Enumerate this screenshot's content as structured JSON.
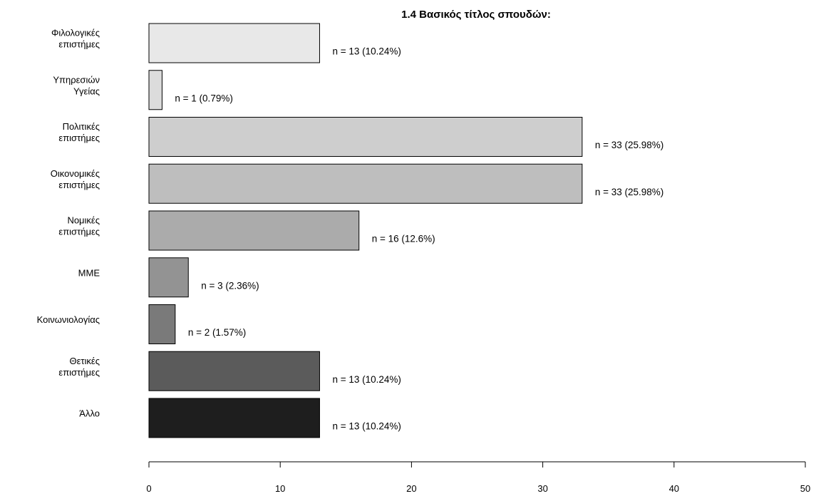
{
  "chart_data": {
    "type": "bar",
    "orientation": "horizontal",
    "title": "1.4 Βασικός τίτλος σπουδών:",
    "categories": [
      [
        "Φιλολογικές",
        "επιστήμες"
      ],
      [
        "Υπηρεσιών",
        "Υγείας"
      ],
      [
        "Πολιτικές",
        "επιστήμες"
      ],
      [
        "Οικονομικές",
        "επιστήμες"
      ],
      [
        "Νομικές",
        "επιστήμες"
      ],
      [
        "ΜΜΕ"
      ],
      [
        "Κοινωνιολογίας"
      ],
      [
        "Θετικές",
        "επιστήμες"
      ],
      [
        "Άλλο"
      ]
    ],
    "values": [
      13,
      1,
      33,
      33,
      16,
      3,
      2,
      13,
      13
    ],
    "data_labels": [
      "n = 13 (10.24%)",
      "n = 1 (0.79%)",
      "n = 33 (25.98%)",
      "n = 33 (25.98%)",
      "n = 16 (12.6%)",
      "n = 3 (2.36%)",
      "n = 2 (1.57%)",
      "n = 13 (10.24%)",
      "n = 13 (10.24%)"
    ],
    "bar_colors": [
      "#e8e8e8",
      "#dcdcdc",
      "#cecece",
      "#bebebe",
      "#ababab",
      "#939393",
      "#7a7a7a",
      "#5b5b5b",
      "#1e1e1e"
    ],
    "xlim": [
      0,
      50
    ],
    "x_ticks": [
      0,
      10,
      20,
      30,
      40,
      50
    ],
    "x_tick_labels": [
      "0",
      "10",
      "20",
      "30",
      "40",
      "50"
    ],
    "xlabel": "",
    "ylabel": "",
    "grid": false,
    "legend": "none"
  }
}
